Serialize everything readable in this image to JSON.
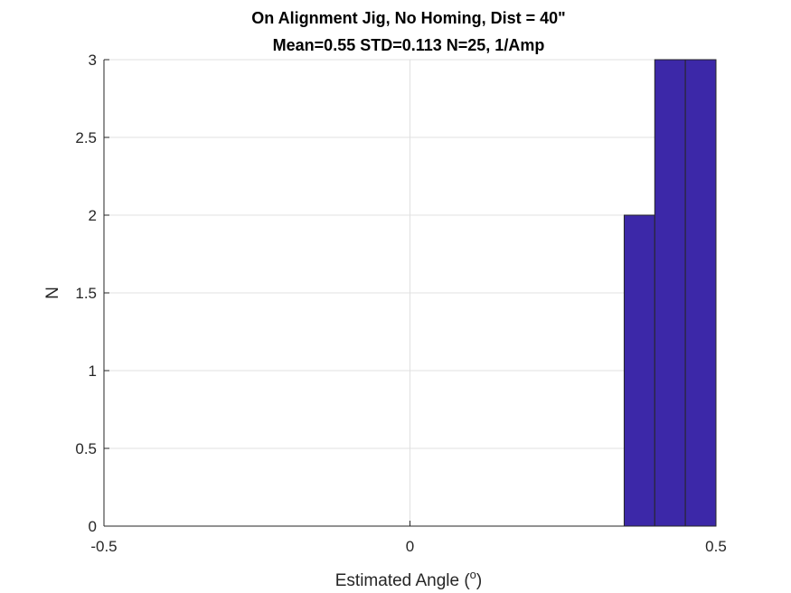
{
  "chart_data": {
    "type": "bar",
    "title": "On Alignment Jig, No Homing, Dist = 40\"",
    "subtitle": "Mean=0.55 STD=0.113 N=25, 1/Amp",
    "xlabel": "Estimated Angle (",
    "xlabel_sup": "o",
    "xlabel_end": ")",
    "ylabel": "N",
    "xlim": [
      -0.5,
      0.5
    ],
    "ylim": [
      0,
      3
    ],
    "xticks": [
      -0.5,
      0,
      0.5
    ],
    "xtick_labels": [
      "-0.5",
      "0",
      "0.5"
    ],
    "yticks": [
      0,
      0.5,
      1,
      1.5,
      2,
      2.5,
      3
    ],
    "ytick_labels": [
      "0",
      "0.5",
      "1",
      "1.5",
      "2",
      "2.5",
      "3"
    ],
    "grid": true,
    "bins": [
      {
        "start": 0.35,
        "end": 0.4,
        "count": 2
      },
      {
        "start": 0.4,
        "end": 0.45,
        "count": 3
      },
      {
        "start": 0.45,
        "end": 0.5,
        "count": 3
      }
    ],
    "bar_color": "#3c28a8",
    "edge_color": "#262626"
  }
}
